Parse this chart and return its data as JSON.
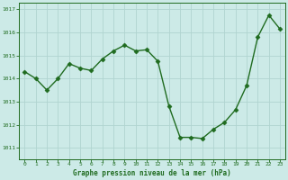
{
  "x": [
    0,
    1,
    2,
    3,
    4,
    5,
    6,
    7,
    8,
    9,
    10,
    11,
    12,
    13,
    14,
    15,
    16,
    17,
    18,
    19,
    20,
    21,
    22,
    23
  ],
  "y": [
    1014.3,
    1014.0,
    1013.5,
    1014.0,
    1014.65,
    1014.45,
    1014.35,
    1014.85,
    1015.2,
    1015.45,
    1015.2,
    1015.25,
    1014.75,
    1012.8,
    1011.45,
    1011.45,
    1011.4,
    1011.8,
    1012.1,
    1012.65,
    1013.7,
    1015.8,
    1016.75,
    1016.15
  ],
  "line_color": "#1f6b1f",
  "marker_color": "#1f6b1f",
  "bg_color": "#cceae7",
  "grid_major_color": "#b0d4d0",
  "grid_minor_color": "#c4e2de",
  "xlabel": "Graphe pression niveau de la mer (hPa)",
  "xlabel_color": "#1f6b1f",
  "tick_color": "#1f6b1f",
  "spine_color": "#1f6b1f",
  "ylim": [
    1010.5,
    1017.3
  ],
  "xlim": [
    -0.5,
    23.5
  ],
  "yticks": [
    1011,
    1012,
    1013,
    1014,
    1015,
    1016,
    1017
  ],
  "xticks": [
    0,
    1,
    2,
    3,
    4,
    5,
    6,
    7,
    8,
    9,
    10,
    11,
    12,
    13,
    14,
    15,
    16,
    17,
    18,
    19,
    20,
    21,
    22,
    23
  ]
}
